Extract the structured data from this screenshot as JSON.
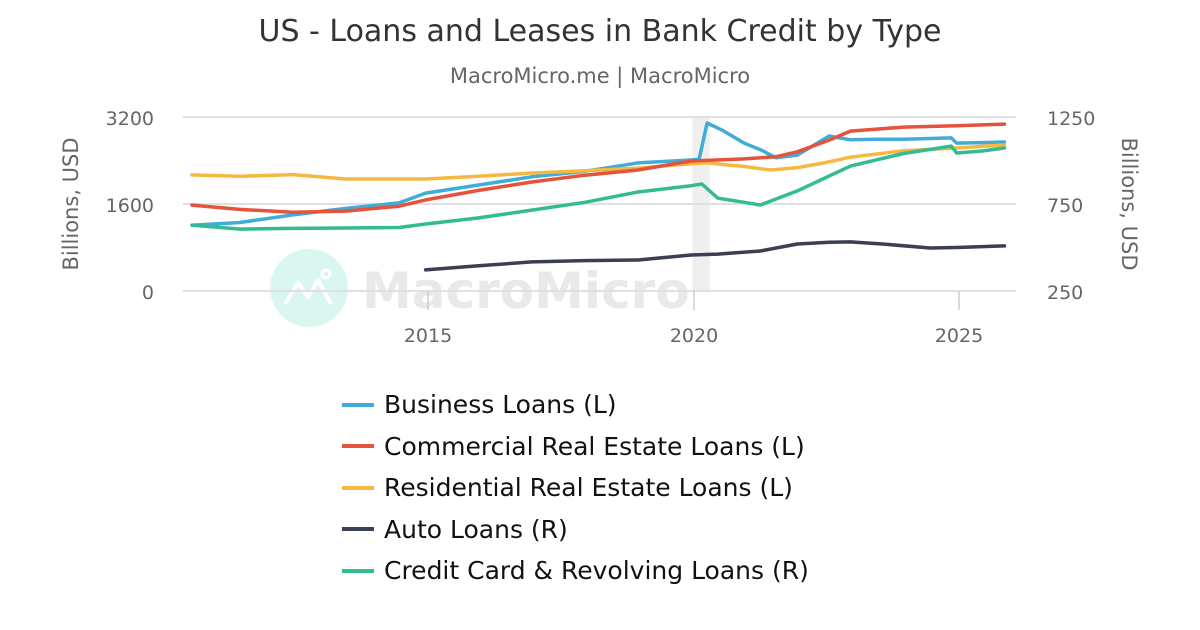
{
  "header": {
    "title": "US - Loans and Leases in Bank Credit by Type",
    "subtitle": "MacroMicro.me | MacroMicro"
  },
  "watermark": {
    "text": "MacroMicro",
    "icon": "macromicro-logo-icon"
  },
  "axes": {
    "left": {
      "label": "Billions, USD",
      "ticks": [
        "3200",
        "1600",
        "0"
      ]
    },
    "right": {
      "label": "Billions, USD",
      "ticks": [
        "1250",
        "750",
        "250"
      ]
    },
    "x": {
      "ticks": [
        "2015",
        "2020",
        "2025"
      ]
    }
  },
  "legend": {
    "items": [
      {
        "label": "Business Loans (L)",
        "color": "#41add7"
      },
      {
        "label": "Commercial Real Estate Loans (L)",
        "color": "#e5533c"
      },
      {
        "label": "Residential Real Estate Loans (L)",
        "color": "#f5b942"
      },
      {
        "label": "Auto Loans (R)",
        "color": "#3a3f52"
      },
      {
        "label": "Credit Card & Revolving Loans (R)",
        "color": "#33bb93"
      }
    ]
  },
  "chart_data": {
    "type": "line",
    "title": "US - Loans and Leases in Bank Credit by Type",
    "subtitle": "MacroMicro.me | MacroMicro",
    "xlabel": "",
    "ylabel_left": "Billions, USD",
    "ylabel_right": "Billions, USD",
    "ylim_left": [
      0,
      3200
    ],
    "ylim_right": [
      250,
      1250
    ],
    "xlim": [
      2010.4,
      2026.1
    ],
    "x_ticks": [
      2015,
      2020,
      2025
    ],
    "y_ticks_left": [
      0,
      1600,
      3200
    ],
    "y_ticks_right": [
      250,
      750,
      1250
    ],
    "grid": true,
    "legend_position": "bottom",
    "shaded_regions": [
      {
        "x0": 2020.1,
        "x1": 2020.35,
        "label": "recession"
      }
    ],
    "series": [
      {
        "name": "Business Loans (L)",
        "axis": "left",
        "color": "#41add7",
        "x": [
          2010.6,
          2011.5,
          2012.5,
          2013.5,
          2014.5,
          2015.0,
          2016.0,
          2017.0,
          2018.0,
          2019.0,
          2020.0,
          2020.15,
          2020.3,
          2020.6,
          2021.0,
          2021.3,
          2021.6,
          2022.0,
          2022.6,
          2023.0,
          2023.5,
          2024.0,
          2024.9,
          2025.0,
          2025.5,
          2025.9
        ],
        "y": [
          1210,
          1260,
          1400,
          1520,
          1620,
          1800,
          1950,
          2100,
          2200,
          2355,
          2410,
          2420,
          3090,
          2950,
          2720,
          2600,
          2450,
          2500,
          2850,
          2780,
          2790,
          2790,
          2815,
          2720,
          2730,
          2740
        ]
      },
      {
        "name": "Commercial Real Estate Loans (L)",
        "axis": "left",
        "color": "#e5533c",
        "x": [
          2010.6,
          2011.5,
          2012.5,
          2013.5,
          2014.5,
          2015.0,
          2016.0,
          2017.0,
          2018.0,
          2019.0,
          2020.0,
          2021.0,
          2021.6,
          2022.0,
          2022.6,
          2023.0,
          2024.0,
          2025.0,
          2025.9
        ],
        "y": [
          1580,
          1500,
          1450,
          1470,
          1560,
          1675,
          1850,
          2005,
          2130,
          2225,
          2390,
          2430,
          2470,
          2560,
          2775,
          2940,
          3015,
          3040,
          3070
        ]
      },
      {
        "name": "Residential Real Estate Loans (L)",
        "axis": "left",
        "color": "#f5b942",
        "x": [
          2010.6,
          2011.5,
          2012.5,
          2013.5,
          2014.5,
          2015.0,
          2016.0,
          2017.0,
          2018.0,
          2019.0,
          2020.0,
          2020.3,
          2021.0,
          2021.5,
          2022.0,
          2022.5,
          2023.0,
          2024.0,
          2025.0,
          2025.9
        ],
        "y": [
          2135,
          2110,
          2140,
          2060,
          2060,
          2060,
          2110,
          2170,
          2210,
          2260,
          2340,
          2355,
          2290,
          2225,
          2270,
          2355,
          2460,
          2580,
          2630,
          2685
        ]
      },
      {
        "name": "Auto Loans (R)",
        "axis": "right",
        "color": "#3a3f52",
        "x": [
          2015.0,
          2016.0,
          2017.0,
          2018.0,
          2019.0,
          2020.0,
          2020.5,
          2021.3,
          2022.0,
          2022.6,
          2023.0,
          2023.6,
          2024.5,
          2025.0,
          2025.9
        ],
        "y": [
          371,
          395,
          417,
          425,
          428,
          457,
          462,
          480,
          520,
          530,
          532,
          520,
          497,
          500,
          509
        ]
      },
      {
        "name": "Credit Card & Revolving Loans (R)",
        "axis": "right",
        "color": "#33bb93",
        "x": [
          2010.6,
          2011.5,
          2012.5,
          2013.5,
          2014.5,
          2015.0,
          2016.0,
          2017.0,
          2018.0,
          2019.0,
          2020.0,
          2020.2,
          2020.5,
          2021.0,
          2021.3,
          2022.0,
          2023.0,
          2024.0,
          2024.9,
          2025.0,
          2025.5,
          2025.9
        ],
        "y": [
          629,
          606,
          610,
          612,
          615,
          635,
          670,
          715,
          760,
          819,
          855,
          865,
          784,
          760,
          744,
          825,
          968,
          1040,
          1083,
          1043,
          1055,
          1072
        ]
      }
    ]
  }
}
